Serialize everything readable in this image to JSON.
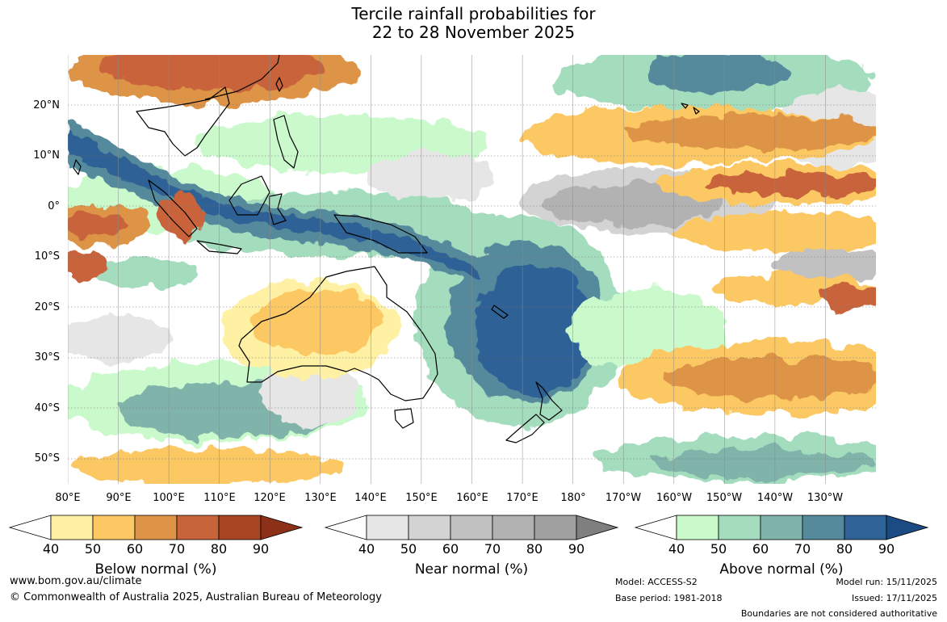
{
  "title": {
    "line1": "Tercile rainfall probabilities for",
    "line2": "22 to 28 November 2025"
  },
  "map": {
    "lat_labels": [
      "20°N",
      "10°N",
      "0°",
      "10°S",
      "20°S",
      "30°S",
      "40°S",
      "50°S"
    ],
    "lon_labels": [
      "80°E",
      "90°E",
      "100°E",
      "110°E",
      "120°E",
      "130°E",
      "140°E",
      "150°E",
      "160°E",
      "170°E",
      "180°",
      "170°W",
      "160°W",
      "150°W",
      "140°W",
      "130°W"
    ]
  },
  "colorbars": [
    {
      "title": "Below normal (%)",
      "ticks": [
        "40",
        "50",
        "60",
        "70",
        "80",
        "90"
      ],
      "colors": [
        "#fff1a4",
        "#fcc863",
        "#de9446",
        "#c8643a",
        "#a84624",
        "#8c3018"
      ]
    },
    {
      "title": "Near normal (%)",
      "ticks": [
        "40",
        "50",
        "60",
        "70",
        "80",
        "90"
      ],
      "colors": [
        "#e6e6e6",
        "#d3d3d3",
        "#c1c1c1",
        "#b2b2b2",
        "#a0a0a0",
        "#7f7f7f"
      ]
    },
    {
      "title": "Above normal (%)",
      "ticks": [
        "40",
        "50",
        "60",
        "70",
        "80",
        "90"
      ],
      "colors": [
        "#caf9cc",
        "#a4dcbe",
        "#80b4aa",
        "#558a9c",
        "#2f6296",
        "#1c4a82"
      ]
    }
  ],
  "footer": {
    "website": "www.bom.gov.au/climate",
    "copyright": "© Commonwealth of Australia 2025, Australian Bureau of Meteorology",
    "model": "Model: ACCESS-S2",
    "base_period": "Base period: 1981-2018",
    "model_run": "Model run: 15/11/2025",
    "issued": "Issued: 17/11/2025",
    "disclaimer": "Boundaries are not considered authoritative"
  }
}
